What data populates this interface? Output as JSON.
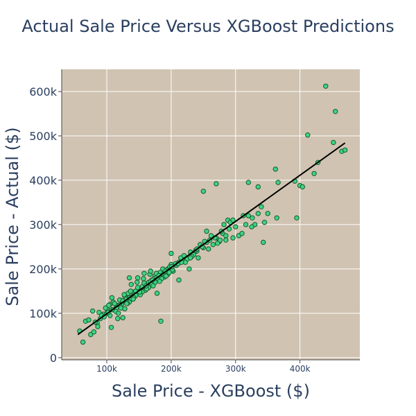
{
  "chart_data": {
    "type": "scatter",
    "title": "Actual Sale Price Versus XGBoost Predictions",
    "xlabel": "Sale Price - XGBoost ($)",
    "ylabel": "Sale Price - Actual ($)",
    "xlim": [
      30000,
      493000
    ],
    "ylim": [
      -5000,
      650000
    ],
    "x_ticks": [
      {
        "value": 100000,
        "label": "100k"
      },
      {
        "value": 200000,
        "label": "200k"
      },
      {
        "value": 300000,
        "label": "300k"
      },
      {
        "value": 400000,
        "label": "400k"
      }
    ],
    "y_ticks": [
      {
        "value": 0,
        "label": "0"
      },
      {
        "value": 100000,
        "label": "100k"
      },
      {
        "value": 200000,
        "label": "200k"
      },
      {
        "value": 300000,
        "label": "300k"
      },
      {
        "value": 400000,
        "label": "400k"
      },
      {
        "value": 500000,
        "label": "500k"
      },
      {
        "value": 600000,
        "label": "600k"
      }
    ],
    "grid": true,
    "colors": {
      "plot_bg": "#d0c3b2",
      "point_fill": "#3ed483",
      "point_edge": "#1a5a2e",
      "line": "#000000",
      "grid": "#ffffff",
      "text": "#2a3f5f"
    },
    "fit_line": {
      "x": [
        55000,
        470000
      ],
      "y": [
        52000,
        484000
      ]
    },
    "points": {
      "x": [
        58000,
        63000,
        67000,
        75000,
        80000,
        85000,
        78000,
        90000,
        95000,
        100000,
        105000,
        110000,
        115000,
        120000,
        125000,
        130000,
        135000,
        140000,
        145000,
        150000,
        155000,
        160000,
        165000,
        170000,
        175000,
        180000,
        185000,
        190000,
        195000,
        200000,
        88000,
        92000,
        98000,
        103000,
        108000,
        112000,
        118000,
        123000,
        128000,
        133000,
        138000,
        143000,
        148000,
        153000,
        158000,
        163000,
        168000,
        173000,
        178000,
        183000,
        188000,
        193000,
        198000,
        203000,
        208000,
        212000,
        218000,
        100000,
        110000,
        120000,
        130000,
        140000,
        150000,
        160000,
        170000,
        180000,
        190000,
        105000,
        115000,
        125000,
        135000,
        145000,
        155000,
        165000,
        175000,
        185000,
        195000,
        72000,
        82000,
        86000,
        96000,
        102000,
        114000,
        122000,
        132000,
        142000,
        152000,
        162000,
        172000,
        182000,
        192000,
        202000,
        125000,
        137000,
        147000,
        157000,
        167000,
        177000,
        187000,
        197000,
        207000,
        117000,
        127000,
        107000,
        131000,
        141000,
        151000,
        161000,
        171000,
        181000,
        191000,
        201000,
        211000,
        215000,
        220000,
        225000,
        230000,
        235000,
        240000,
        245000,
        250000,
        255000,
        260000,
        265000,
        270000,
        275000,
        280000,
        285000,
        290000,
        222000,
        228000,
        232000,
        238000,
        242000,
        248000,
        252000,
        258000,
        262000,
        268000,
        272000,
        278000,
        282000,
        288000,
        292000,
        296000,
        300000,
        305000,
        310000,
        316000,
        320000,
        326000,
        330000,
        335000,
        340000,
        345000,
        362000,
        366000,
        392000,
        395000,
        400000,
        404000,
        412000,
        422000,
        428000,
        440000,
        452000,
        455000,
        465000,
        470000,
        250000,
        270000,
        320000,
        364000,
        343000,
        212000,
        184000,
        216000,
        135000,
        200000,
        230000,
        276000,
        312000,
        335000,
        350000,
        296000,
        240000,
        255000,
        285000,
        325000,
        178000,
        108000,
        118000,
        128000,
        148000,
        158000,
        168000,
        138000
      ],
      "y": [
        60000,
        35000,
        82000,
        52000,
        58000,
        78000,
        105000,
        88000,
        98000,
        110000,
        120000,
        125000,
        115000,
        130000,
        128000,
        140000,
        135000,
        148000,
        150000,
        155000,
        160000,
        165000,
        170000,
        175000,
        185000,
        180000,
        190000,
        195000,
        200000,
        210000,
        102000,
        95000,
        112000,
        118000,
        108000,
        122000,
        118000,
        120000,
        138000,
        145000,
        132000,
        142000,
        158000,
        150000,
        168000,
        160000,
        172000,
        178000,
        182000,
        192000,
        188000,
        198000,
        205000,
        195000,
        208000,
        215000,
        220000,
        100000,
        108000,
        118000,
        132000,
        138000,
        145000,
        152000,
        165000,
        175000,
        182000,
        95000,
        112000,
        128000,
        125000,
        140000,
        148000,
        158000,
        170000,
        178000,
        188000,
        85000,
        80000,
        70000,
        92000,
        102000,
        104000,
        112000,
        122000,
        135000,
        142000,
        155000,
        162000,
        172000,
        184000,
        198000,
        90000,
        150000,
        170000,
        178000,
        188000,
        190000,
        200000,
        192000,
        212000,
        88000,
        142000,
        68000,
        122000,
        132000,
        148000,
        162000,
        175000,
        185000,
        195000,
        205000,
        212000,
        225000,
        230000,
        222000,
        238000,
        232000,
        240000,
        255000,
        248000,
        260000,
        265000,
        255000,
        270000,
        262000,
        280000,
        275000,
        290000,
        215000,
        200000,
        228000,
        242000,
        225000,
        250000,
        262000,
        245000,
        275000,
        270000,
        258000,
        285000,
        300000,
        310000,
        305000,
        310000,
        295000,
        275000,
        280000,
        300000,
        320000,
        315000,
        300000,
        325000,
        340000,
        305000,
        425000,
        395000,
        398000,
        315000,
        388000,
        385000,
        502000,
        415000,
        440000,
        612000,
        485000,
        555000,
        465000,
        468000,
        375000,
        392000,
        395000,
        315000,
        260000,
        175000,
        82000,
        215000,
        180000,
        235000,
        225000,
        265000,
        320000,
        385000,
        325000,
        270000,
        245000,
        285000,
        265000,
        295000,
        145000,
        135000,
        100000,
        110000,
        180000,
        190000,
        195000,
        165000
      ]
    }
  }
}
